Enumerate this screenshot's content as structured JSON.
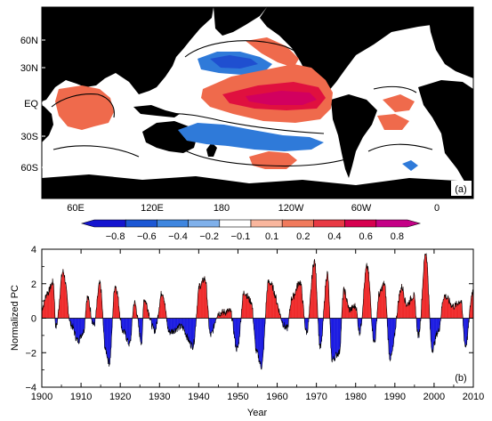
{
  "panel_a": {
    "label": "(a)",
    "lat_ticks": [
      "60N",
      "30N",
      "EQ",
      "30S",
      "60S"
    ],
    "lon_ticks": [
      "60E",
      "120E",
      "180",
      "120W",
      "60W",
      "0"
    ],
    "colorbar": {
      "ticks": [
        "−0.8",
        "−0.6",
        "−0.4",
        "−0.2",
        "−0.1",
        "0.1",
        "0.2",
        "0.4",
        "0.6",
        "0.8"
      ],
      "colors": [
        "#1515cf",
        "#1c57d4",
        "#3f86df",
        "#7fb0ea",
        "#ffffff",
        "#f9b69d",
        "#f07a5c",
        "#e83a44",
        "#d6004f",
        "#c40086"
      ]
    },
    "colors": {
      "land": "#000000",
      "ocean": "#ffffff",
      "warm": "#ef6a4c",
      "warm_strong": "#e0103f",
      "warm_core": "#d2005f",
      "cool": "#2f7ad9",
      "cool_strong": "#1f4fd0"
    }
  },
  "chart_data": {
    "type": "bar",
    "title": "",
    "xlabel": "Year",
    "ylabel": "Normalized PC",
    "panel_label": "(b)",
    "xlim": [
      1900,
      2010
    ],
    "ylim": [
      -4,
      4
    ],
    "x_ticks": [
      1900,
      1910,
      1920,
      1930,
      1940,
      1950,
      1960,
      1970,
      1980,
      1990,
      2000,
      2010
    ],
    "y_ticks": [
      -4,
      -2,
      0,
      2,
      4
    ],
    "positive_color": "#ee2020",
    "negative_color": "#1010e0",
    "line_color": "#000000",
    "resolution": "monthly",
    "key_points": [
      {
        "year": 1900.0,
        "value": 0.6
      },
      {
        "year": 1901.5,
        "value": 1.5
      },
      {
        "year": 1902.9,
        "value": 2.1
      },
      {
        "year": 1903.6,
        "value": -0.5
      },
      {
        "year": 1905.4,
        "value": 2.7
      },
      {
        "year": 1907.5,
        "value": -0.4
      },
      {
        "year": 1909.2,
        "value": -1.3
      },
      {
        "year": 1910.6,
        "value": -0.8
      },
      {
        "year": 1911.6,
        "value": 1.2
      },
      {
        "year": 1913.3,
        "value": -0.4
      },
      {
        "year": 1914.8,
        "value": 2.0
      },
      {
        "year": 1916.3,
        "value": -1.9
      },
      {
        "year": 1917.2,
        "value": -2.6
      },
      {
        "year": 1918.7,
        "value": 1.9
      },
      {
        "year": 1920.8,
        "value": -0.8
      },
      {
        "year": 1922.4,
        "value": -1.5
      },
      {
        "year": 1923.6,
        "value": 0.9
      },
      {
        "year": 1925.5,
        "value": -1.4
      },
      {
        "year": 1926.0,
        "value": 1.1
      },
      {
        "year": 1928.8,
        "value": -0.7
      },
      {
        "year": 1930.7,
        "value": 1.5
      },
      {
        "year": 1932.5,
        "value": -0.8
      },
      {
        "year": 1935.5,
        "value": -0.5
      },
      {
        "year": 1938.5,
        "value": -1.6
      },
      {
        "year": 1940.3,
        "value": 1.9
      },
      {
        "year": 1941.6,
        "value": 2.3
      },
      {
        "year": 1943.0,
        "value": -1.0
      },
      {
        "year": 1945.0,
        "value": 0.3
      },
      {
        "year": 1948.0,
        "value": 0.4
      },
      {
        "year": 1949.8,
        "value": -1.8
      },
      {
        "year": 1951.6,
        "value": 1.5
      },
      {
        "year": 1953.3,
        "value": 1.0
      },
      {
        "year": 1954.8,
        "value": -2.0
      },
      {
        "year": 1956.0,
        "value": -2.8
      },
      {
        "year": 1957.8,
        "value": 2.1
      },
      {
        "year": 1962.5,
        "value": -0.6
      },
      {
        "year": 1963.8,
        "value": 1.2
      },
      {
        "year": 1965.8,
        "value": 2.1
      },
      {
        "year": 1967.5,
        "value": -0.8
      },
      {
        "year": 1969.5,
        "value": 3.3
      },
      {
        "year": 1971.0,
        "value": -1.7
      },
      {
        "year": 1972.8,
        "value": 2.6
      },
      {
        "year": 1974.0,
        "value": -2.4
      },
      {
        "year": 1975.8,
        "value": -2.0
      },
      {
        "year": 1977.0,
        "value": 1.6
      },
      {
        "year": 1978.5,
        "value": 0.5
      },
      {
        "year": 1980.0,
        "value": 0.7
      },
      {
        "year": 1981.0,
        "value": -0.8
      },
      {
        "year": 1982.9,
        "value": 3.0
      },
      {
        "year": 1984.8,
        "value": -1.4
      },
      {
        "year": 1986.0,
        "value": 1.4
      },
      {
        "year": 1987.3,
        "value": 2.0
      },
      {
        "year": 1988.8,
        "value": -2.3
      },
      {
        "year": 1991.8,
        "value": 1.8
      },
      {
        "year": 1993.0,
        "value": 0.8
      },
      {
        "year": 1994.8,
        "value": 1.3
      },
      {
        "year": 1996.0,
        "value": -1.0
      },
      {
        "year": 1997.9,
        "value": 3.8
      },
      {
        "year": 1999.5,
        "value": -1.8
      },
      {
        "year": 2001.0,
        "value": -0.8
      },
      {
        "year": 2002.6,
        "value": 1.3
      },
      {
        "year": 2005.0,
        "value": 0.7
      },
      {
        "year": 2006.8,
        "value": 1.0
      },
      {
        "year": 2008.0,
        "value": -1.6
      },
      {
        "year": 2009.9,
        "value": 1.6
      },
      {
        "year": 2010.0,
        "value": 0.5
      }
    ]
  }
}
